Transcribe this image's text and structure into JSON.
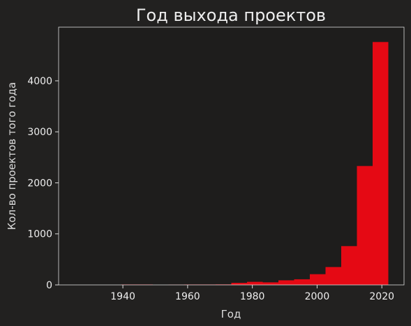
{
  "chart_data": {
    "type": "histogram",
    "title": "Год выхода проектов",
    "x_label": "Год",
    "y_label": "Кол-во проектов того года",
    "bins": [
      1925,
      1929.85,
      1934.7,
      1939.55,
      1944.4,
      1949.25,
      1954.1,
      1958.95,
      1963.8,
      1968.65,
      1973.5,
      1978.35,
      1983.2,
      1988.05,
      1992.9,
      1997.75,
      2002.6,
      2007.45,
      2012.3,
      2017.15,
      2022
    ],
    "values": [
      0,
      0,
      0,
      8,
      8,
      0,
      5,
      8,
      8,
      10,
      40,
      60,
      50,
      90,
      110,
      210,
      350,
      760,
      2330,
      4760
    ],
    "color": "#e50914",
    "xlim": [
      1920.15,
      2026.85
    ],
    "xticks": [
      1940,
      1960,
      1980,
      2000,
      2020
    ],
    "ylim": [
      0,
      5051
    ],
    "yticks": [
      0,
      1000,
      2000,
      3000,
      4000
    ]
  }
}
